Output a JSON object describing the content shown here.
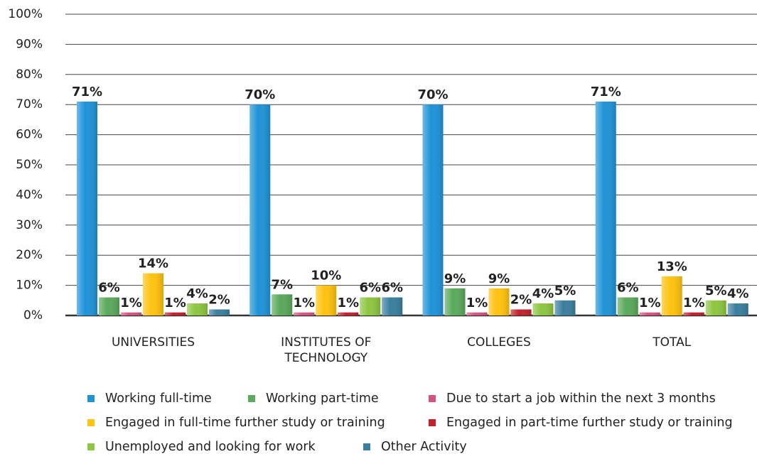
{
  "chart_data": {
    "type": "bar",
    "categories": [
      "UNIVERSITIES",
      "INSTITUTES OF TECHNOLOGY",
      "COLLEGES",
      "TOTAL"
    ],
    "series": [
      {
        "name": "Working full-time",
        "color": "#1f93d8",
        "values": [
          71,
          70,
          70,
          71
        ],
        "value_labels": [
          "71%",
          "70%",
          "70%",
          "71%"
        ]
      },
      {
        "name": "Working part-time",
        "color": "#5aa95c",
        "values": [
          6,
          7,
          9,
          6
        ],
        "value_labels": [
          "6%",
          "7%",
          "9%",
          "6%"
        ]
      },
      {
        "name": "Due to start a job within the next 3 months",
        "color": "#d4537f",
        "values": [
          1,
          1,
          1,
          1
        ],
        "value_labels": [
          "1%",
          "1%",
          "1%",
          "1%"
        ]
      },
      {
        "name": "Engaged in full-time further study or training",
        "color": "#ffc20e",
        "values": [
          14,
          10,
          9,
          13
        ],
        "value_labels": [
          "14%",
          "10%",
          "9%",
          "13%"
        ]
      },
      {
        "name": "Engaged in part-time further study or training",
        "color": "#c3202c",
        "values": [
          1,
          1,
          2,
          1
        ],
        "value_labels": [
          "1%",
          "1%",
          "2%",
          "1%"
        ]
      },
      {
        "name": "Unemployed and looking for work",
        "color": "#8dc63f",
        "values": [
          4,
          6,
          4,
          5
        ],
        "value_labels": [
          "4%",
          "6%",
          "4%",
          "5%"
        ]
      },
      {
        "name": "Other Activity",
        "color": "#3a7f9e",
        "values": [
          2,
          6,
          5,
          4
        ],
        "value_labels": [
          "2%",
          "6%",
          "5%",
          "4%"
        ]
      }
    ],
    "ylim": [
      0,
      100
    ],
    "yticks": [
      {
        "value": 0,
        "label": "0%"
      },
      {
        "value": 10,
        "label": "10%"
      },
      {
        "value": 20,
        "label": "20%"
      },
      {
        "value": 30,
        "label": "30%"
      },
      {
        "value": 40,
        "label": "40%"
      },
      {
        "value": 50,
        "label": "50%"
      },
      {
        "value": 60,
        "label": "60%"
      },
      {
        "value": 70,
        "label": "70%"
      },
      {
        "value": 80,
        "label": "80%"
      },
      {
        "value": 90,
        "label": "90%"
      },
      {
        "value": 100,
        "label": "100%"
      }
    ],
    "grid": true
  }
}
